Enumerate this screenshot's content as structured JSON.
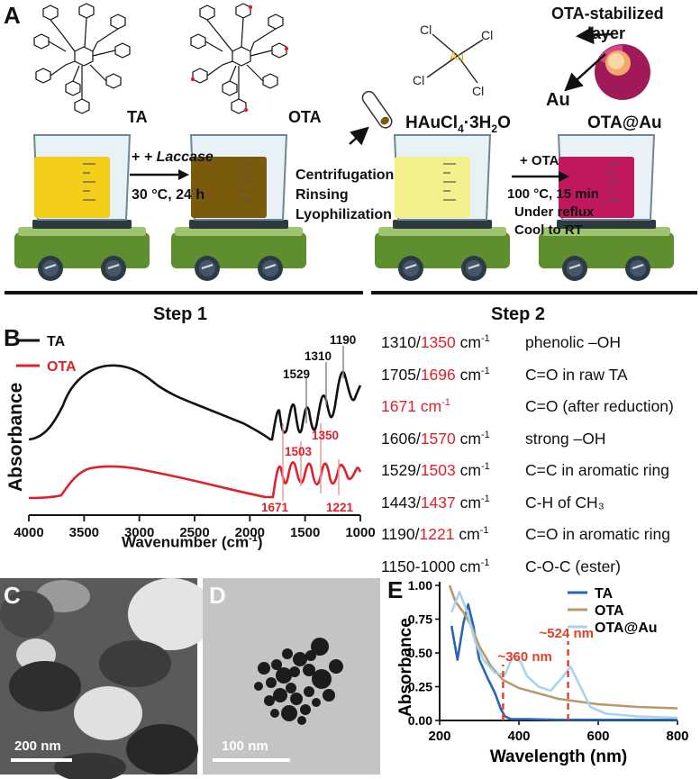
{
  "panels": {
    "a": "A",
    "b": "B",
    "c": "C",
    "d": "D",
    "e": "E"
  },
  "panel_a": {
    "ta_label": "TA",
    "ota_label": "OTA",
    "arrow1_reagent": "+ Laccase",
    "arrow1_conditions": "30 °C, 24 h",
    "processing": [
      "Centrifugation",
      "Rinsing",
      "Lyophilization"
    ],
    "gold_salt_base": "HAuCl",
    "gold_salt_sub": "4",
    "gold_salt_tail": "·3H",
    "gold_salt_sub2": "2",
    "gold_salt_end": "O",
    "molecule_cl": "Cl",
    "molecule_au": "Au",
    "arrow2_reagent": "+ OTA",
    "arrow2_conditions": [
      "100 °C, 15 min",
      "Under reflux",
      "Cool to RT"
    ],
    "np_layer_label": [
      "OTA-stabilized",
      "layer"
    ],
    "np_core_label": "Au",
    "product_label": "OTA@Au",
    "step1": "Step 1",
    "step2": "Step 2",
    "colors": {
      "ta_solution": "#f2cd1a",
      "ota_solution": "#7a5a0c",
      "gold_solution": "#f2f08a",
      "product_solution": "#c0185e"
    }
  },
  "panel_b": {
    "ylabel": "Absorbance",
    "xlabel_base": "Wavenumber (cm",
    "xlabel_sup": "-1",
    "xlabel_end": ")",
    "legend": [
      {
        "name": "TA",
        "color": "#111111"
      },
      {
        "name": "OTA",
        "color": "#e0202a"
      }
    ],
    "x_ticks": [
      4000,
      3500,
      3000,
      2500,
      2000,
      1500,
      1000
    ],
    "ta_peak_labels": [
      "1190",
      "1310",
      "1529"
    ],
    "ota_peak_labels": [
      "1350",
      "1503",
      "1671",
      "1221"
    ],
    "assignments": [
      {
        "ta": "1310",
        "ota": "1350",
        "desc": "phenolic –OH"
      },
      {
        "ta": "1705",
        "ota": "1696",
        "desc": "C=O in raw TA"
      },
      {
        "ta": "",
        "ota": "1671",
        "desc": "C=O (after reduction)"
      },
      {
        "ta": "1606",
        "ota": "1570",
        "desc": "strong –OH"
      },
      {
        "ta": "1529",
        "ota": "1503",
        "desc": "C=C in aromatic ring"
      },
      {
        "ta": "1443",
        "ota": "1437",
        "desc": "C-H of CH₃"
      },
      {
        "ta": "1190",
        "ota": "1221",
        "desc": "C=O in aromatic ring"
      },
      {
        "ta": "1150-1000",
        "ota": "",
        "desc": "C-O-C (ester)"
      }
    ],
    "unit": "cm",
    "unit_sup": "-1"
  },
  "panel_c": {
    "scale_bar": "200 nm"
  },
  "panel_d": {
    "scale_bar": "100 nm"
  },
  "chart_data": {
    "type": "line",
    "xlabel": "Wavelength (nm)",
    "ylabel": "Absorbance",
    "xlim": [
      200,
      800
    ],
    "ylim": [
      0,
      1.0
    ],
    "x_ticks": [
      200,
      400,
      600,
      800
    ],
    "y_ticks": [
      "0.00",
      "0.25",
      "0.50",
      "0.75",
      "1.00"
    ],
    "legend_position": "top-right",
    "annotations": [
      {
        "x": 360,
        "label": "~360 nm"
      },
      {
        "x": 524,
        "label": "~524 nm"
      }
    ],
    "series": [
      {
        "name": "TA",
        "color": "#2b63b5",
        "x": [
          230,
          245,
          260,
          272,
          285,
          300,
          320,
          340,
          355,
          365,
          380,
          420,
          500,
          600,
          700,
          800
        ],
        "y": [
          0.7,
          0.45,
          0.72,
          0.86,
          0.7,
          0.45,
          0.32,
          0.2,
          0.08,
          0.03,
          0.01,
          0.01,
          0.005,
          0.005,
          0.005,
          0.005
        ]
      },
      {
        "name": "OTA",
        "color": "#b8996b",
        "x": [
          225,
          240,
          260,
          280,
          300,
          330,
          360,
          400,
          450,
          500,
          550,
          600,
          700,
          800
        ],
        "y": [
          1.0,
          0.88,
          0.8,
          0.7,
          0.55,
          0.4,
          0.3,
          0.24,
          0.2,
          0.16,
          0.14,
          0.12,
          0.1,
          0.09
        ]
      },
      {
        "name": "OTA@Au",
        "color": "#a8d3ef",
        "x": [
          230,
          250,
          270,
          290,
          310,
          340,
          365,
          385,
          405,
          420,
          450,
          480,
          510,
          530,
          550,
          580,
          620,
          700,
          800
        ],
        "y": [
          0.8,
          0.95,
          0.8,
          0.58,
          0.45,
          0.35,
          0.34,
          0.48,
          0.43,
          0.33,
          0.25,
          0.22,
          0.32,
          0.4,
          0.28,
          0.1,
          0.05,
          0.03,
          0.02
        ]
      }
    ]
  }
}
